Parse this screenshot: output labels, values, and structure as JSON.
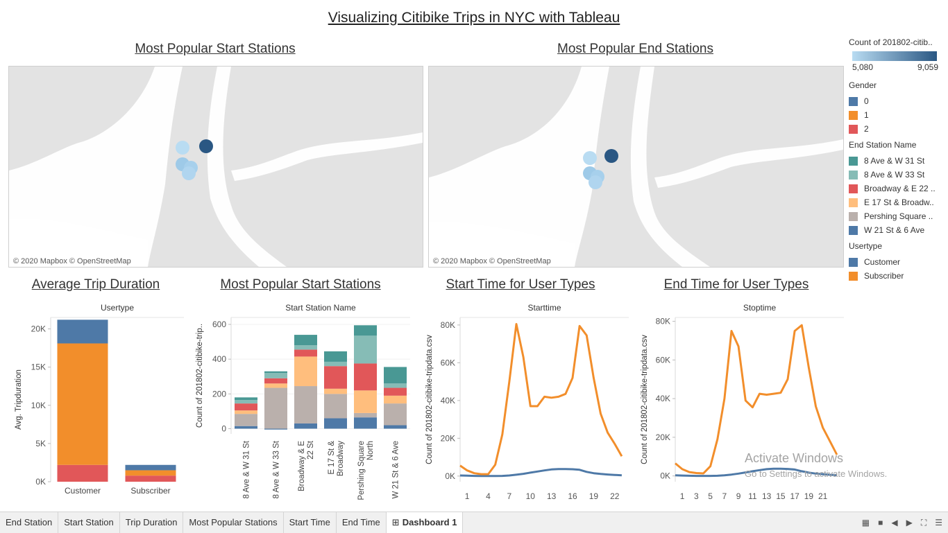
{
  "dashboard_title": "Visualizing Citibike Trips in NYC with Tableau",
  "maps": [
    {
      "title": "Most Popular Start Stations",
      "credit": "© 2020 Mapbox © OpenStreetMap"
    },
    {
      "title": "Most Popular End Stations",
      "credit": "© 2020 Mapbox © OpenStreetMap"
    }
  ],
  "legend": {
    "count_title": "Count of 201802-citib..",
    "count_min": "5,080",
    "count_max": "9,059",
    "gender_title": "Gender",
    "gender_items": [
      {
        "label": "0",
        "color": "#4e79a7"
      },
      {
        "label": "1",
        "color": "#f28e2b"
      },
      {
        "label": "2",
        "color": "#e15759"
      }
    ],
    "station_title": "End Station Name",
    "station_items": [
      {
        "label": "8 Ave & W 31 St",
        "color": "#499894"
      },
      {
        "label": "8 Ave & W 33 St",
        "color": "#86bcb6"
      },
      {
        "label": "Broadway & E 22 ..",
        "color": "#e15759"
      },
      {
        "label": "E 17 St & Broadw..",
        "color": "#ffbe7d"
      },
      {
        "label": "Pershing Square ..",
        "color": "#bab0ac"
      },
      {
        "label": "W 21 St & 6 Ave",
        "color": "#4e79a7"
      }
    ],
    "usertype_title": "Usertype",
    "usertype_items": [
      {
        "label": "Customer",
        "color": "#4e79a7"
      },
      {
        "label": "Subscriber",
        "color": "#f28e2b"
      }
    ]
  },
  "tabs": [
    "End Station",
    "Start Station",
    "Trip Duration",
    "Most Popular Stations",
    "Start Time",
    "End Time",
    "Dashboard 1"
  ],
  "active_tab": "Dashboard 1",
  "watermark": {
    "line1": "Activate Windows",
    "line2": "Go to Settings to activate Windows."
  },
  "chart_data": [
    {
      "id": "trip-duration",
      "type": "bar",
      "stacked": true,
      "title": "Average Trip Duration",
      "header": "Usertype",
      "ylabel": "Avg. Tripduration",
      "ylim": [
        0,
        21500
      ],
      "yticks": [
        0,
        5000,
        10000,
        15000,
        20000
      ],
      "ytick_labels": [
        "0K",
        "5K",
        "10K",
        "15K",
        "20K"
      ],
      "categories": [
        "Customer",
        "Subscriber"
      ],
      "series": [
        {
          "name": "2",
          "color": "#e15759",
          "values": [
            2200,
            800
          ]
        },
        {
          "name": "1",
          "color": "#f28e2b",
          "values": [
            15900,
            700
          ]
        },
        {
          "name": "0",
          "color": "#4e79a7",
          "values": [
            3100,
            700
          ]
        }
      ]
    },
    {
      "id": "popular-start",
      "type": "bar",
      "stacked": true,
      "title": "Most Popular Start Stations",
      "header": "Start Station Name",
      "ylabel": "Count of 201802-citibike-trip..",
      "ylim": [
        -30,
        640
      ],
      "yticks": [
        0,
        200,
        400,
        600
      ],
      "ytick_labels": [
        "0",
        "200",
        "400",
        "600"
      ],
      "categories": [
        "8 Ave & W 31 St",
        "8 Ave & W 33 St",
        "Broadway & E|22 St",
        "E 17 St &|Broadway",
        "Pershing Square|North",
        "W 21 St & 6 Ave"
      ],
      "series": [
        {
          "name": "W 21 St & 6 Ave",
          "color": "#4e79a7",
          "values": [
            15,
            -5,
            30,
            60,
            65,
            20
          ]
        },
        {
          "name": "Pershing Square ..",
          "color": "#bab0ac",
          "values": [
            70,
            235,
            215,
            140,
            25,
            125
          ]
        },
        {
          "name": "E 17 St & Broadw..",
          "color": "#ffbe7d",
          "values": [
            20,
            25,
            170,
            30,
            130,
            45
          ]
        },
        {
          "name": "Broadway & E 22 ..",
          "color": "#e15759",
          "values": [
            40,
            30,
            40,
            130,
            155,
            45
          ]
        },
        {
          "name": "8 Ave & W 33 St",
          "color": "#86bcb6",
          "values": [
            20,
            30,
            25,
            25,
            160,
            25
          ]
        },
        {
          "name": "8 Ave & W 31 St",
          "color": "#499894",
          "values": [
            15,
            10,
            60,
            60,
            60,
            95
          ]
        }
      ]
    },
    {
      "id": "start-time",
      "type": "line",
      "title": "Start Time for User Types",
      "header": "Starttime",
      "ylabel": "Count of 201802-citibike-tripdata.csv",
      "xlim": [
        0,
        24
      ],
      "xticks": [
        1,
        4,
        7,
        10,
        13,
        16,
        19,
        22
      ],
      "ylim": [
        -3000,
        84000
      ],
      "yticks": [
        0,
        20000,
        40000,
        60000,
        80000
      ],
      "ytick_labels": [
        "0K",
        "20K",
        "40K",
        "60K",
        "80K"
      ],
      "x": [
        0,
        1,
        2,
        3,
        4,
        5,
        6,
        7,
        8,
        9,
        10,
        11,
        12,
        13,
        14,
        15,
        16,
        17,
        18,
        19,
        20,
        21,
        22,
        23
      ],
      "series": [
        {
          "name": "Subscriber",
          "color": "#f28e2b",
          "values": [
            5500,
            3000,
            1500,
            1000,
            1000,
            6000,
            22000,
            50000,
            80500,
            63000,
            37000,
            37000,
            42000,
            41500,
            42000,
            43500,
            52000,
            79500,
            74500,
            52000,
            33000,
            23000,
            17000,
            10500
          ]
        },
        {
          "name": "Customer",
          "color": "#4e79a7",
          "values": [
            300,
            200,
            100,
            0,
            0,
            0,
            100,
            300,
            700,
            1200,
            1800,
            2400,
            3000,
            3500,
            3700,
            3700,
            3600,
            3300,
            2200,
            1500,
            1100,
            800,
            600,
            400
          ]
        }
      ]
    },
    {
      "id": "end-time",
      "type": "line",
      "title": "End Time for User Types",
      "header": "Stoptime",
      "ylabel": "Count of 201802-citibike-tripdata.csv",
      "xlim": [
        0,
        24
      ],
      "xticks": [
        1,
        3,
        5,
        7,
        9,
        11,
        13,
        15,
        17,
        19,
        21
      ],
      "ylim": [
        -3000,
        82000
      ],
      "yticks": [
        0,
        20000,
        40000,
        60000,
        80000
      ],
      "ytick_labels": [
        "0K",
        "20K",
        "40K",
        "60K",
        "80K"
      ],
      "x": [
        0,
        1,
        2,
        3,
        4,
        5,
        6,
        7,
        8,
        9,
        10,
        11,
        12,
        13,
        14,
        15,
        16,
        17,
        18,
        19,
        20,
        21,
        22,
        23
      ],
      "series": [
        {
          "name": "Subscriber",
          "color": "#f28e2b",
          "values": [
            6500,
            3500,
            2000,
            1500,
            1300,
            5000,
            19000,
            40000,
            75000,
            67000,
            39000,
            35500,
            42500,
            42000,
            42500,
            43000,
            50000,
            75000,
            78000,
            56000,
            36000,
            25000,
            18000,
            11000
          ]
        },
        {
          "name": "Customer",
          "color": "#4e79a7",
          "values": [
            300,
            200,
            100,
            0,
            0,
            0,
            100,
            300,
            700,
            1200,
            1800,
            2400,
            3000,
            3500,
            3700,
            3700,
            3600,
            3300,
            2400,
            1700,
            1200,
            900,
            600,
            400
          ]
        }
      ]
    }
  ]
}
